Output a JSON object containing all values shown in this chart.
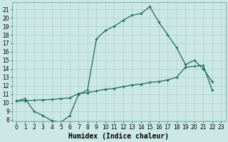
{
  "xlabel": "Humidex (Indice chaleur)",
  "bg_color": "#cce8e4",
  "line_color": "#1a6b5a",
  "grid_color": "#aacfcb",
  "xlim": [
    -0.5,
    23.5
  ],
  "ylim": [
    7.8,
    21.8
  ],
  "yticks": [
    8,
    9,
    10,
    11,
    12,
    13,
    14,
    15,
    16,
    17,
    18,
    19,
    20,
    21
  ],
  "xticks": [
    0,
    1,
    2,
    3,
    4,
    5,
    6,
    7,
    8,
    9,
    10,
    11,
    12,
    13,
    14,
    15,
    16,
    17,
    18,
    19,
    20,
    21,
    22,
    23
  ],
  "line1_x": [
    0,
    1,
    2,
    3,
    4,
    5,
    6,
    7,
    8,
    9,
    10,
    11,
    12,
    13,
    14,
    15,
    16,
    17,
    18,
    19,
    20,
    21,
    22
  ],
  "line1_y": [
    10.2,
    10.5,
    9.0,
    8.5,
    7.9,
    7.7,
    8.5,
    11.0,
    11.5,
    17.5,
    18.5,
    19.0,
    19.7,
    20.3,
    20.5,
    21.3,
    19.5,
    18.0,
    16.5,
    14.5,
    15.0,
    14.0,
    12.5
  ],
  "line2_x": [
    0,
    1,
    2,
    3,
    4,
    5,
    6,
    7,
    8,
    9,
    10,
    11,
    12,
    13,
    14,
    15,
    16,
    17,
    18,
    19,
    20,
    21,
    22
  ],
  "line2_y": [
    10.2,
    10.25,
    10.3,
    10.35,
    10.4,
    10.5,
    10.6,
    11.1,
    11.2,
    11.4,
    11.6,
    11.7,
    11.9,
    12.1,
    12.2,
    12.4,
    12.5,
    12.7,
    13.0,
    14.2,
    14.3,
    14.4,
    11.5
  ],
  "marker": "+",
  "markersize": 3.5,
  "linewidth": 0.9,
  "xlabel_fontsize": 7,
  "tick_fontsize": 5.5
}
